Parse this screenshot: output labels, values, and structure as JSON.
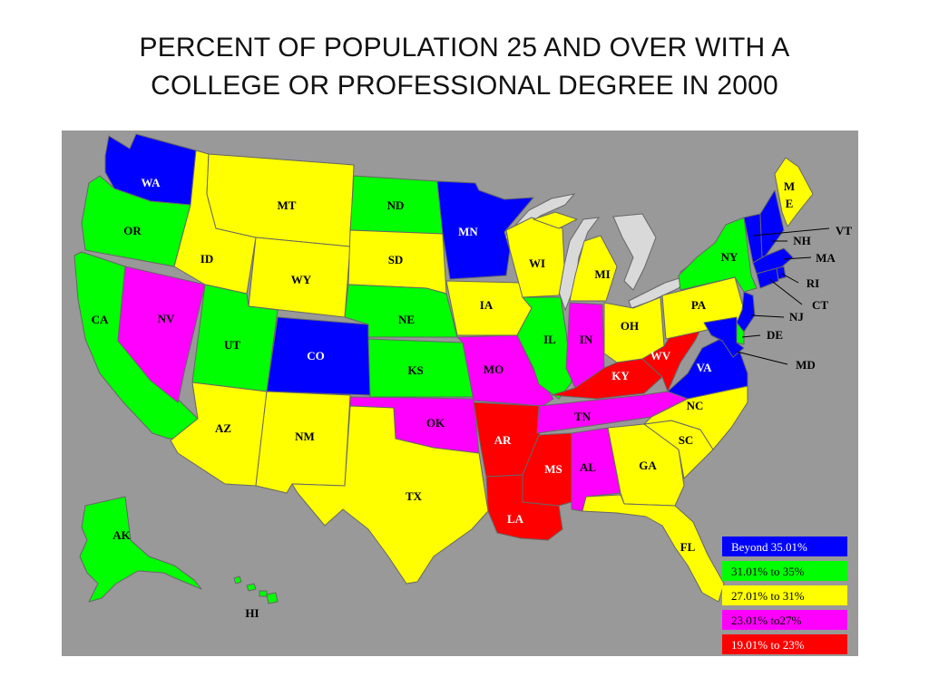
{
  "title_line1": "PERCENT OF POPULATION 25 AND OVER WITH A",
  "title_line2": "COLLEGE OR PROFESSIONAL DEGREE IN 2000",
  "colors": {
    "blue": "#0000ff",
    "green": "#00ff00",
    "yellow": "#ffff00",
    "magenta": "#ff00ff",
    "red": "#ff0000",
    "background": "#999999",
    "lakes": "#d9d9d9"
  },
  "legend": [
    {
      "label": "Beyond 35.01%",
      "color": "#0000ff"
    },
    {
      "label": "31.01% to 35%",
      "color": "#00ff00"
    },
    {
      "label": "27.01% to 31%",
      "color": "#ffff00"
    },
    {
      "label": "23.01% to27%",
      "color": "#ff00ff"
    },
    {
      "label": "19.01% to 23%",
      "color": "#ff0000"
    }
  ],
  "states": {
    "WA": "blue",
    "OR": "green",
    "CA": "green",
    "NV": "magenta",
    "ID": "yellow",
    "MT": "yellow",
    "WY": "yellow",
    "UT": "green",
    "CO": "blue",
    "AZ": "yellow",
    "NM": "yellow",
    "ND": "green",
    "SD": "yellow",
    "NE": "green",
    "KS": "green",
    "OK": "magenta",
    "TX": "yellow",
    "MN": "blue",
    "IA": "yellow",
    "MO": "magenta",
    "AR": "red",
    "LA": "red",
    "WI": "yellow",
    "IL": "green",
    "MI": "yellow",
    "IN": "magenta",
    "OH": "yellow",
    "KY": "red",
    "TN": "magenta",
    "MS": "red",
    "AL": "magenta",
    "GA": "yellow",
    "FL": "yellow",
    "SC": "yellow",
    "NC": "yellow",
    "VA": "blue",
    "WV": "red",
    "PA": "yellow",
    "NY": "green",
    "ME": "yellow",
    "VT": "blue",
    "NH": "blue",
    "MA": "blue",
    "RI": "blue",
    "CT": "blue",
    "NJ": "blue",
    "DE": "green",
    "MD": "blue",
    "AK": "green",
    "HI": "green"
  },
  "labels": {
    "WA": "WA",
    "OR": "OR",
    "CA": "CA",
    "NV": "NV",
    "ID": "ID",
    "MT": "MT",
    "WY": "WY",
    "UT": "UT",
    "CO": "CO",
    "AZ": "AZ",
    "NM": "NM",
    "ND": "ND",
    "SD": "SD",
    "NE": "NE",
    "KS": "KS",
    "OK": "OK",
    "TX": "TX",
    "MN": "MN",
    "IA": "IA",
    "MO": "MO",
    "AR": "AR",
    "LA": "LA",
    "WI": "WI",
    "IL": "IL",
    "MI": "MI",
    "IN": "IN",
    "OH": "OH",
    "KY": "KY",
    "TN": "TN",
    "MS": "MS",
    "AL": "AL",
    "GA": "GA",
    "FL": "FL",
    "SC": "SC",
    "NC": "NC",
    "VA": "VA",
    "WV": "WV",
    "PA": "PA",
    "NY": "NY",
    "ME_1": "M",
    "ME_2": "E",
    "VT": "VT",
    "NH": "NH",
    "MA": "MA",
    "RI": "RI",
    "CT": "CT",
    "NJ": "NJ",
    "DE": "DE",
    "MD": "MD",
    "AK": "AK",
    "HI": "HI"
  }
}
